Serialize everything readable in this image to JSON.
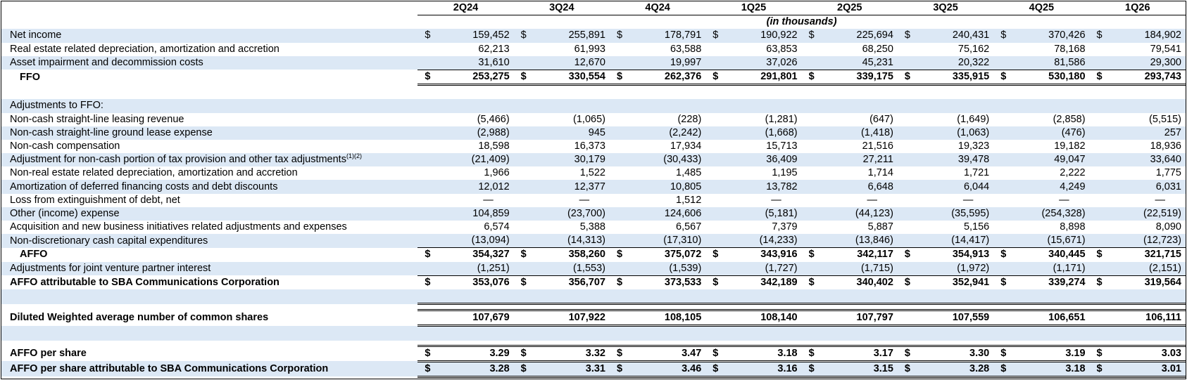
{
  "quarters": [
    "2Q24",
    "3Q24",
    "4Q24",
    "1Q25",
    "2Q25",
    "3Q25",
    "4Q25",
    "1Q26"
  ],
  "subheader": "(in thousands)",
  "currency_symbol": "$",
  "rows": {
    "net_income": {
      "label": "Net income",
      "values": [
        "159,452",
        "255,891",
        "178,791",
        "190,922",
        "225,694",
        "240,431",
        "370,426",
        "184,902"
      ]
    },
    "re_depr": {
      "label": "Real estate related depreciation, amortization and accretion",
      "values": [
        "62,213",
        "61,993",
        "63,588",
        "63,853",
        "68,250",
        "75,162",
        "78,168",
        "79,541"
      ]
    },
    "asset_impair": {
      "label": "Asset impairment and decommission costs",
      "values": [
        "31,610",
        "12,670",
        "19,997",
        "37,026",
        "45,231",
        "20,322",
        "81,586",
        "29,300"
      ]
    },
    "ffo": {
      "label": "FFO",
      "values": [
        "253,275",
        "330,554",
        "262,376",
        "291,801",
        "339,175",
        "335,915",
        "530,180",
        "293,743"
      ]
    },
    "adj_header": {
      "label": "Adjustments to FFO:"
    },
    "sl_leasing": {
      "label": "Non-cash straight-line leasing revenue",
      "values": [
        "(5,466)",
        "(1,065)",
        "(228)",
        "(1,281)",
        "(647)",
        "(1,649)",
        "(2,858)",
        "(5,515)"
      ]
    },
    "sl_ground": {
      "label": "Non-cash straight-line ground lease expense",
      "values": [
        "(2,988)",
        "945",
        "(2,242)",
        "(1,668)",
        "(1,418)",
        "(1,063)",
        "(476)",
        "257"
      ]
    },
    "noncash_comp": {
      "label": "Non-cash compensation",
      "values": [
        "18,598",
        "16,373",
        "17,934",
        "15,713",
        "21,516",
        "19,323",
        "19,182",
        "18,936"
      ]
    },
    "tax_adj": {
      "label": "Adjustment for non-cash portion of tax provision and other tax adjustments",
      "footnote": "(1)(2)",
      "values": [
        "(21,409)",
        "30,179",
        "(30,433)",
        "36,409",
        "27,211",
        "39,478",
        "49,047",
        "33,640"
      ]
    },
    "nonre_depr": {
      "label": "Non-real estate related depreciation, amortization and accretion",
      "values": [
        "1,966",
        "1,522",
        "1,485",
        "1,195",
        "1,714",
        "1,721",
        "2,222",
        "1,775"
      ]
    },
    "amort_fin": {
      "label": "Amortization of deferred financing costs and debt discounts",
      "values": [
        "12,012",
        "12,377",
        "10,805",
        "13,782",
        "6,648",
        "6,044",
        "4,249",
        "6,031"
      ]
    },
    "loss_ext": {
      "label": "Loss from extinguishment of debt, net",
      "values": [
        "—",
        "—",
        "1,512",
        "—",
        "—",
        "—",
        "—",
        "—"
      ]
    },
    "other_exp": {
      "label": "Other (income) expense",
      "values": [
        "104,859",
        "(23,700)",
        "124,606",
        "(5,181)",
        "(44,123)",
        "(35,595)",
        "(254,328)",
        "(22,519)"
      ]
    },
    "acq_new": {
      "label": "Acquisition and new business initiatives related adjustments and expenses",
      "values": [
        "6,574",
        "5,388",
        "6,567",
        "7,379",
        "5,887",
        "5,156",
        "8,898",
        "8,090"
      ]
    },
    "capex": {
      "label": "Non-discretionary cash capital expenditures",
      "values": [
        "(13,094)",
        "(14,313)",
        "(17,310)",
        "(14,233)",
        "(13,846)",
        "(14,417)",
        "(15,671)",
        "(12,723)"
      ]
    },
    "affo": {
      "label": "AFFO",
      "values": [
        "354,327",
        "358,260",
        "375,072",
        "343,916",
        "342,117",
        "354,913",
        "340,445",
        "321,715"
      ]
    },
    "jv_adj": {
      "label": "Adjustments for joint venture partner interest",
      "values": [
        "(1,251)",
        "(1,553)",
        "(1,539)",
        "(1,727)",
        "(1,715)",
        "(1,972)",
        "(1,171)",
        "(2,151)"
      ]
    },
    "affo_sbac": {
      "label": "AFFO attributable to SBA Communications Corporation",
      "values": [
        "353,076",
        "356,707",
        "373,533",
        "342,189",
        "340,402",
        "352,941",
        "339,274",
        "319,564"
      ]
    },
    "diluted": {
      "label": "Diluted Weighted average number of common shares",
      "values": [
        "107,679",
        "107,922",
        "108,105",
        "108,140",
        "107,797",
        "107,559",
        "106,651",
        "106,111"
      ]
    },
    "affo_ps": {
      "label": "AFFO per share",
      "values": [
        "3.29",
        "3.32",
        "3.47",
        "3.18",
        "3.17",
        "3.30",
        "3.19",
        "3.03"
      ]
    },
    "affo_ps_sbac": {
      "label": "AFFO per share attributable to SBA Communications Corporation",
      "values": [
        "3.28",
        "3.31",
        "3.46",
        "3.16",
        "3.15",
        "3.28",
        "3.18",
        "3.01"
      ]
    }
  },
  "colors": {
    "shade": "#dce8f5",
    "text": "#000000",
    "border": "#000000"
  }
}
